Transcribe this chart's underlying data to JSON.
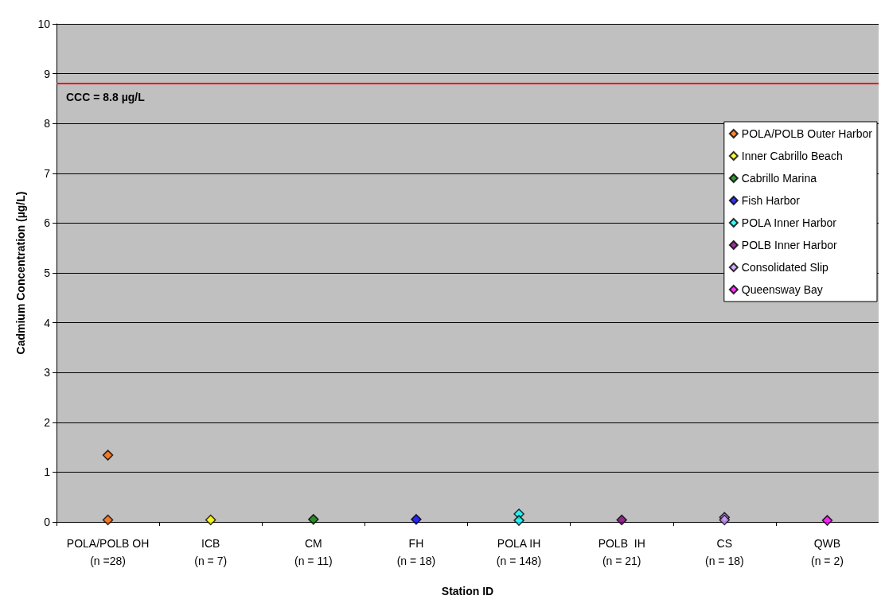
{
  "chart_data": {
    "type": "scatter",
    "xlabel": "Station ID",
    "ylabel": "Cadmium Concentration (µg/L)",
    "categories": [
      "POLA/POLB OH\n(n =28)",
      "ICB\n(n = 7)",
      "CM\n(n = 11)",
      "FH\n(n = 18)",
      "POLA IH\n(n = 148)",
      "POLB  IH\n(n = 21)",
      "CS\n(n = 18)",
      "QWB\n(n = 2)"
    ],
    "series": [
      {
        "name": "POLA/POLB Outer Harbor",
        "color": "#ff6600",
        "x": [
          "POLA/POLB OH\n(n =28)",
          "POLA/POLB OH\n(n =28)"
        ],
        "values": [
          1.34,
          0.04
        ]
      },
      {
        "name": "Inner Cabrillo Beach",
        "color": "#ffff00",
        "x": [
          "ICB\n(n = 7)"
        ],
        "values": [
          0.04
        ]
      },
      {
        "name": "Cabrillo Marina",
        "color": "#008000",
        "x": [
          "CM\n(n = 11)"
        ],
        "values": [
          0.05
        ]
      },
      {
        "name": "Fish Harbor",
        "color": "#0000ff",
        "x": [
          "FH\n(n = 18)"
        ],
        "values": [
          0.05
        ]
      },
      {
        "name": "POLA Inner Harbor",
        "color": "#00ffff",
        "x": [
          "POLA IH\n(n = 148)",
          "POLA IH\n(n = 148)"
        ],
        "values": [
          0.16,
          0.03
        ]
      },
      {
        "name": "POLB Inner Harbor",
        "color": "#800080",
        "x": [
          "POLB  IH\n(n = 21)"
        ],
        "values": [
          0.04
        ]
      },
      {
        "name": "Consolidated Slip",
        "color": "#cc99ff",
        "x": [
          "CS\n(n = 18)",
          "CS\n(n = 18)"
        ],
        "values": [
          0.09,
          0.04
        ]
      },
      {
        "name": "Queensway Bay",
        "color": "#ff00ff",
        "x": [
          "QWB\n(n = 2)"
        ],
        "values": [
          0.03
        ]
      }
    ],
    "ylim": [
      0,
      10
    ],
    "yticks": [
      0,
      1,
      2,
      3,
      4,
      5,
      6,
      7,
      8,
      9,
      10
    ],
    "grid": "y",
    "legend": "top right",
    "marker": "diamond",
    "ref_lines": [
      {
        "axis": "y",
        "value": 8.8,
        "label": "CCC = 8.8 µg/L",
        "color": "#ff0000"
      }
    ]
  }
}
